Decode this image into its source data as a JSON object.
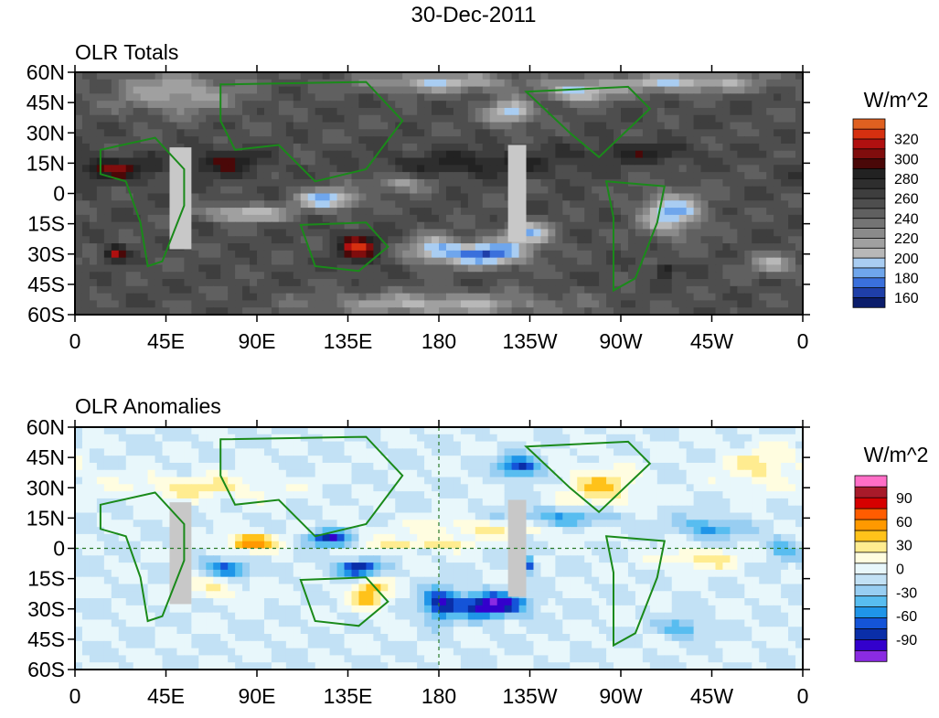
{
  "chart_data": [
    {
      "type": "heatmap",
      "figure_title": "30-Dec-2011",
      "title": "OLR Totals",
      "units": "W/m^2",
      "x_ticks": [
        "0",
        "45E",
        "90E",
        "135E",
        "180",
        "135W",
        "90W",
        "45W",
        "0"
      ],
      "y_ticks": [
        "60N",
        "45N",
        "30N",
        "15N",
        "0",
        "15S",
        "30S",
        "45S",
        "60S"
      ],
      "xlim": [
        0,
        360
      ],
      "ylim": [
        -60,
        60
      ],
      "colorbar": {
        "labels": [
          "160",
          "180",
          "200",
          "220",
          "240",
          "260",
          "280",
          "300",
          "320"
        ],
        "colors": [
          "#0b1d6b",
          "#1f3fa8",
          "#3a70dc",
          "#6fa6ec",
          "#a9cdf2",
          "#b8b8b8",
          "#a0a0a0",
          "#8a8a8a",
          "#747474",
          "#606060",
          "#4e4e4e",
          "#3e3e3e",
          "#2e2e2e",
          "#222222",
          "#4a0808",
          "#800d0d",
          "#b01010",
          "#d63010",
          "#e06020"
        ]
      },
      "field": {
        "base": 255,
        "features": [
          {
            "lon": 20,
            "lat": 12,
            "rlon": 22,
            "rlat": 6,
            "amp": 40
          },
          {
            "lon": 75,
            "lat": 15,
            "rlon": 18,
            "rlat": 7,
            "amp": 35
          },
          {
            "lon": 140,
            "lat": -27,
            "rlon": 10,
            "rlat": 7,
            "amp": 60
          },
          {
            "lon": 200,
            "lat": 15,
            "rlon": 45,
            "rlat": 6,
            "amp": 30
          },
          {
            "lon": 20,
            "lat": -30,
            "rlon": 5,
            "rlat": 4,
            "amp": 55
          },
          {
            "lon": 292,
            "lat": -38,
            "rlon": 4,
            "rlat": 3,
            "amp": 50
          },
          {
            "lon": 280,
            "lat": 20,
            "rlon": 30,
            "rlat": 5,
            "amp": 25
          },
          {
            "lon": 85,
            "lat": -10,
            "rlon": 20,
            "rlat": 4,
            "amp": -60
          },
          {
            "lon": 125,
            "lat": -3,
            "rlon": 15,
            "rlat": 5,
            "amp": -70
          },
          {
            "lon": 160,
            "lat": 5,
            "rlon": 15,
            "rlat": 4,
            "amp": -40
          },
          {
            "lon": 178,
            "lat": -28,
            "rlon": 14,
            "rlat": 7,
            "amp": -60
          },
          {
            "lon": 205,
            "lat": -30,
            "rlon": 18,
            "rlat": 6,
            "amp": -85
          },
          {
            "lon": 225,
            "lat": -20,
            "rlon": 12,
            "rlat": 6,
            "amp": -60
          },
          {
            "lon": 295,
            "lat": -10,
            "rlon": 15,
            "rlat": 10,
            "amp": -70
          },
          {
            "lon": 345,
            "lat": -35,
            "rlon": 12,
            "rlat": 5,
            "amp": -45
          },
          {
            "lon": 215,
            "lat": 40,
            "rlon": 12,
            "rlat": 6,
            "amp": -65
          },
          {
            "lon": 250,
            "lat": 50,
            "rlon": 15,
            "rlat": 5,
            "amp": -60
          },
          {
            "lon": 50,
            "lat": 50,
            "rlon": 30,
            "rlat": 10,
            "amp": -45
          },
          {
            "lon": 180,
            "lat": 55,
            "rlon": 40,
            "rlat": 5,
            "amp": -50
          },
          {
            "lon": 300,
            "lat": 55,
            "rlon": 40,
            "rlat": 5,
            "amp": -55
          },
          {
            "lon": 180,
            "lat": -55,
            "rlon": 60,
            "rlat": 6,
            "amp": -45
          }
        ]
      }
    },
    {
      "type": "heatmap",
      "title": "OLR Anomalies",
      "units": "W/m^2",
      "x_ticks": [
        "0",
        "45E",
        "90E",
        "135E",
        "180",
        "135W",
        "90W",
        "45W",
        "0"
      ],
      "y_ticks": [
        "60N",
        "45N",
        "30N",
        "15N",
        "0",
        "15S",
        "30S",
        "45S",
        "60S"
      ],
      "xlim": [
        0,
        360
      ],
      "ylim": [
        -60,
        60
      ],
      "colorbar": {
        "labels": [
          "90",
          "60",
          "30",
          "0",
          "-30",
          "-60",
          "-90"
        ],
        "colors": [
          "#8a2be2",
          "#3300cc",
          "#0a2ea8",
          "#1454d8",
          "#1f95e8",
          "#58bdf0",
          "#98cef2",
          "#c2e1f5",
          "#e8f7fb",
          "#fffde0",
          "#ffec90",
          "#ffc21a",
          "#ff9900",
          "#ff5c00",
          "#d60000",
          "#a81a2a",
          "#ff6ec7"
        ]
      },
      "field": {
        "base": 0,
        "features": [
          {
            "lon": 87,
            "lat": 3,
            "rlon": 12,
            "rlat": 4,
            "amp": 70
          },
          {
            "lon": 145,
            "lat": -22,
            "rlon": 10,
            "rlat": 8,
            "amp": 50
          },
          {
            "lon": 170,
            "lat": 2,
            "rlon": 25,
            "rlat": 3,
            "amp": 35
          },
          {
            "lon": 260,
            "lat": 30,
            "rlon": 18,
            "rlat": 10,
            "amp": 40
          },
          {
            "lon": 60,
            "lat": 30,
            "rlon": 40,
            "rlat": 6,
            "amp": 30
          },
          {
            "lon": 205,
            "lat": 10,
            "rlon": 40,
            "rlat": 5,
            "amp": 30
          },
          {
            "lon": 310,
            "lat": -5,
            "rlon": 20,
            "rlat": 5,
            "amp": 35
          },
          {
            "lon": 70,
            "lat": -20,
            "rlon": 15,
            "rlat": 6,
            "amp": 25
          },
          {
            "lon": 340,
            "lat": 40,
            "rlon": 20,
            "rlat": 10,
            "amp": 30
          },
          {
            "lon": 75,
            "lat": -10,
            "rlon": 10,
            "rlat": 4,
            "amp": -70
          },
          {
            "lon": 125,
            "lat": 5,
            "rlon": 10,
            "rlat": 4,
            "amp": -80
          },
          {
            "lon": 140,
            "lat": -10,
            "rlon": 10,
            "rlat": 4,
            "amp": -85
          },
          {
            "lon": 180,
            "lat": -28,
            "rlon": 8,
            "rlat": 8,
            "amp": -70
          },
          {
            "lon": 205,
            "lat": -28,
            "rlon": 18,
            "rlat": 6,
            "amp": -95
          },
          {
            "lon": 223,
            "lat": -8,
            "rlon": 4,
            "rlat": 4,
            "amp": -95
          },
          {
            "lon": 240,
            "lat": 15,
            "rlon": 30,
            "rlat": 5,
            "amp": -40
          },
          {
            "lon": 220,
            "lat": 40,
            "rlon": 10,
            "rlat": 5,
            "amp": -70
          },
          {
            "lon": 315,
            "lat": 10,
            "rlon": 15,
            "rlat": 5,
            "amp": -45
          },
          {
            "lon": 300,
            "lat": -40,
            "rlon": 10,
            "rlat": 5,
            "amp": -40
          },
          {
            "lon": 350,
            "lat": 0,
            "rlon": 8,
            "rlat": 6,
            "amp": -35
          }
        ]
      }
    }
  ]
}
